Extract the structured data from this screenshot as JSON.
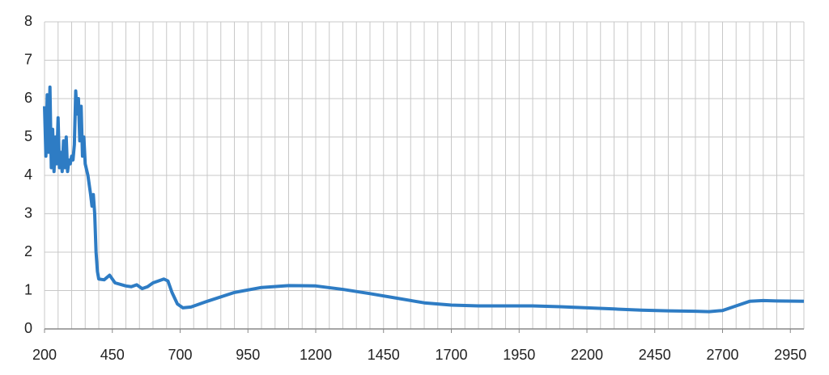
{
  "chart_data": {
    "type": "line",
    "x": [
      200,
      205,
      210,
      215,
      220,
      225,
      230,
      235,
      240,
      245,
      250,
      255,
      260,
      265,
      270,
      275,
      280,
      285,
      290,
      295,
      300,
      305,
      310,
      315,
      320,
      325,
      330,
      335,
      340,
      345,
      350,
      360,
      370,
      375,
      380,
      385,
      390,
      395,
      400,
      420,
      440,
      460,
      500,
      520,
      540,
      560,
      580,
      600,
      620,
      640,
      655,
      670,
      690,
      710,
      740,
      800,
      900,
      1000,
      1100,
      1200,
      1300,
      1400,
      1500,
      1600,
      1700,
      1800,
      1900,
      2000,
      2100,
      2200,
      2300,
      2400,
      2500,
      2600,
      2650,
      2700,
      2750,
      2800,
      2850,
      2900,
      3000
    ],
    "series": [
      {
        "color": "#2e7cc4",
        "values": [
          5.8,
          4.5,
          6.1,
          4.6,
          6.3,
          4.2,
          5.2,
          4.1,
          5.0,
          4.3,
          5.5,
          4.2,
          4.6,
          4.1,
          4.9,
          4.2,
          5.0,
          4.1,
          4.4,
          4.3,
          4.5,
          4.4,
          4.8,
          6.2,
          5.6,
          6.0,
          4.9,
          5.8,
          4.5,
          5.0,
          4.3,
          4.0,
          3.5,
          3.2,
          3.5,
          3.0,
          2.0,
          1.5,
          1.3,
          1.28,
          1.4,
          1.2,
          1.12,
          1.1,
          1.15,
          1.05,
          1.1,
          1.2,
          1.25,
          1.3,
          1.25,
          0.95,
          0.65,
          0.55,
          0.57,
          0.72,
          0.95,
          1.08,
          1.13,
          1.12,
          1.03,
          0.92,
          0.8,
          0.68,
          0.62,
          0.6,
          0.6,
          0.6,
          0.58,
          0.55,
          0.52,
          0.49,
          0.47,
          0.46,
          0.45,
          0.48,
          0.6,
          0.72,
          0.74,
          0.73,
          0.72
        ]
      }
    ],
    "xlim": [
      200,
      3000
    ],
    "xticks": [
      200,
      450,
      700,
      950,
      1200,
      1450,
      1700,
      1950,
      2200,
      2450,
      2700,
      2950
    ],
    "ylim": [
      0,
      8
    ],
    "yticks": [
      0,
      1,
      2,
      3,
      4,
      5,
      6,
      7,
      8
    ],
    "grid": true,
    "x_grid_step": 50
  }
}
